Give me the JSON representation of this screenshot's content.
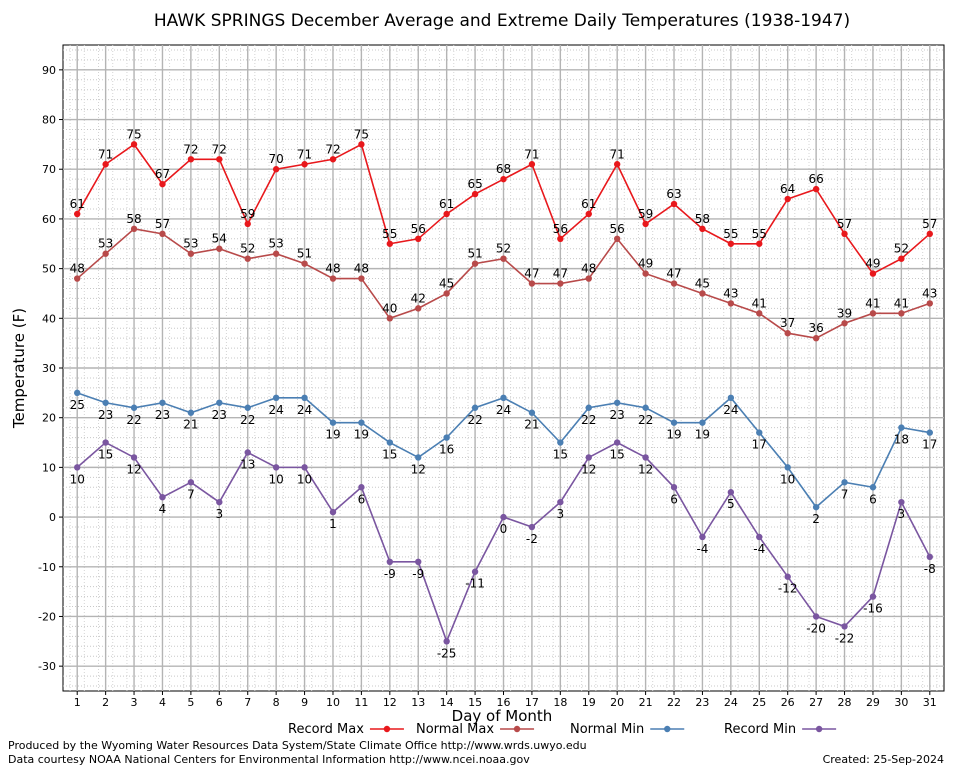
{
  "chart_data": {
    "type": "line",
    "title": "HAWK SPRINGS December Average and Extreme Daily Temperatures (1938-1947)",
    "xlabel": "Day of Month",
    "ylabel": "Temperature (F)",
    "ylim": [
      -35,
      95
    ],
    "yticks": [
      -30,
      -20,
      -10,
      0,
      10,
      20,
      30,
      40,
      50,
      60,
      70,
      80,
      90
    ],
    "xlim": [
      0.5,
      31.5
    ],
    "x": [
      1,
      2,
      3,
      4,
      5,
      6,
      7,
      8,
      9,
      10,
      11,
      12,
      13,
      14,
      15,
      16,
      17,
      18,
      19,
      20,
      21,
      22,
      23,
      24,
      25,
      26,
      27,
      28,
      29,
      30,
      31
    ],
    "grid": true,
    "legend_position": "bottom",
    "series": [
      {
        "name": "Record Max",
        "color": "#e8181c",
        "values": [
          61,
          71,
          75,
          67,
          72,
          72,
          59,
          70,
          71,
          72,
          75,
          55,
          56,
          61,
          65,
          68,
          71,
          56,
          61,
          71,
          59,
          63,
          58,
          55,
          55,
          64,
          66,
          57,
          49,
          52,
          57
        ]
      },
      {
        "name": "Normal Max",
        "color": "#b84a4a",
        "values": [
          48,
          53,
          58,
          57,
          53,
          54,
          52,
          53,
          51,
          48,
          48,
          40,
          42,
          45,
          51,
          52,
          47,
          47,
          48,
          56,
          49,
          47,
          45,
          43,
          41,
          37,
          36,
          39,
          41,
          41,
          43
        ]
      },
      {
        "name": "Normal Min",
        "color": "#4b7fb3",
        "values": [
          25,
          23,
          22,
          23,
          21,
          23,
          22,
          24,
          24,
          19,
          19,
          15,
          12,
          16,
          22,
          24,
          21,
          15,
          22,
          23,
          22,
          19,
          19,
          24,
          17,
          10,
          2,
          7,
          6,
          18,
          17
        ]
      },
      {
        "name": "Record Min",
        "color": "#7a56a0",
        "values": [
          10,
          15,
          12,
          4,
          7,
          3,
          13,
          10,
          10,
          1,
          6,
          -9,
          -9,
          -25,
          -11,
          0,
          -2,
          3,
          12,
          15,
          12,
          6,
          -4,
          5,
          -4,
          -12,
          -20,
          -22,
          -16,
          3,
          -8
        ]
      }
    ]
  },
  "footer": {
    "produced_by": "Produced by the Wyoming Water Resources Data System/State Climate Office http://www.wrds.uwyo.edu",
    "data_courtesy": "Data courtesy NOAA National Centers for Environmental Information http://www.ncei.noaa.gov",
    "created": "Created:  25-Sep-2024"
  }
}
